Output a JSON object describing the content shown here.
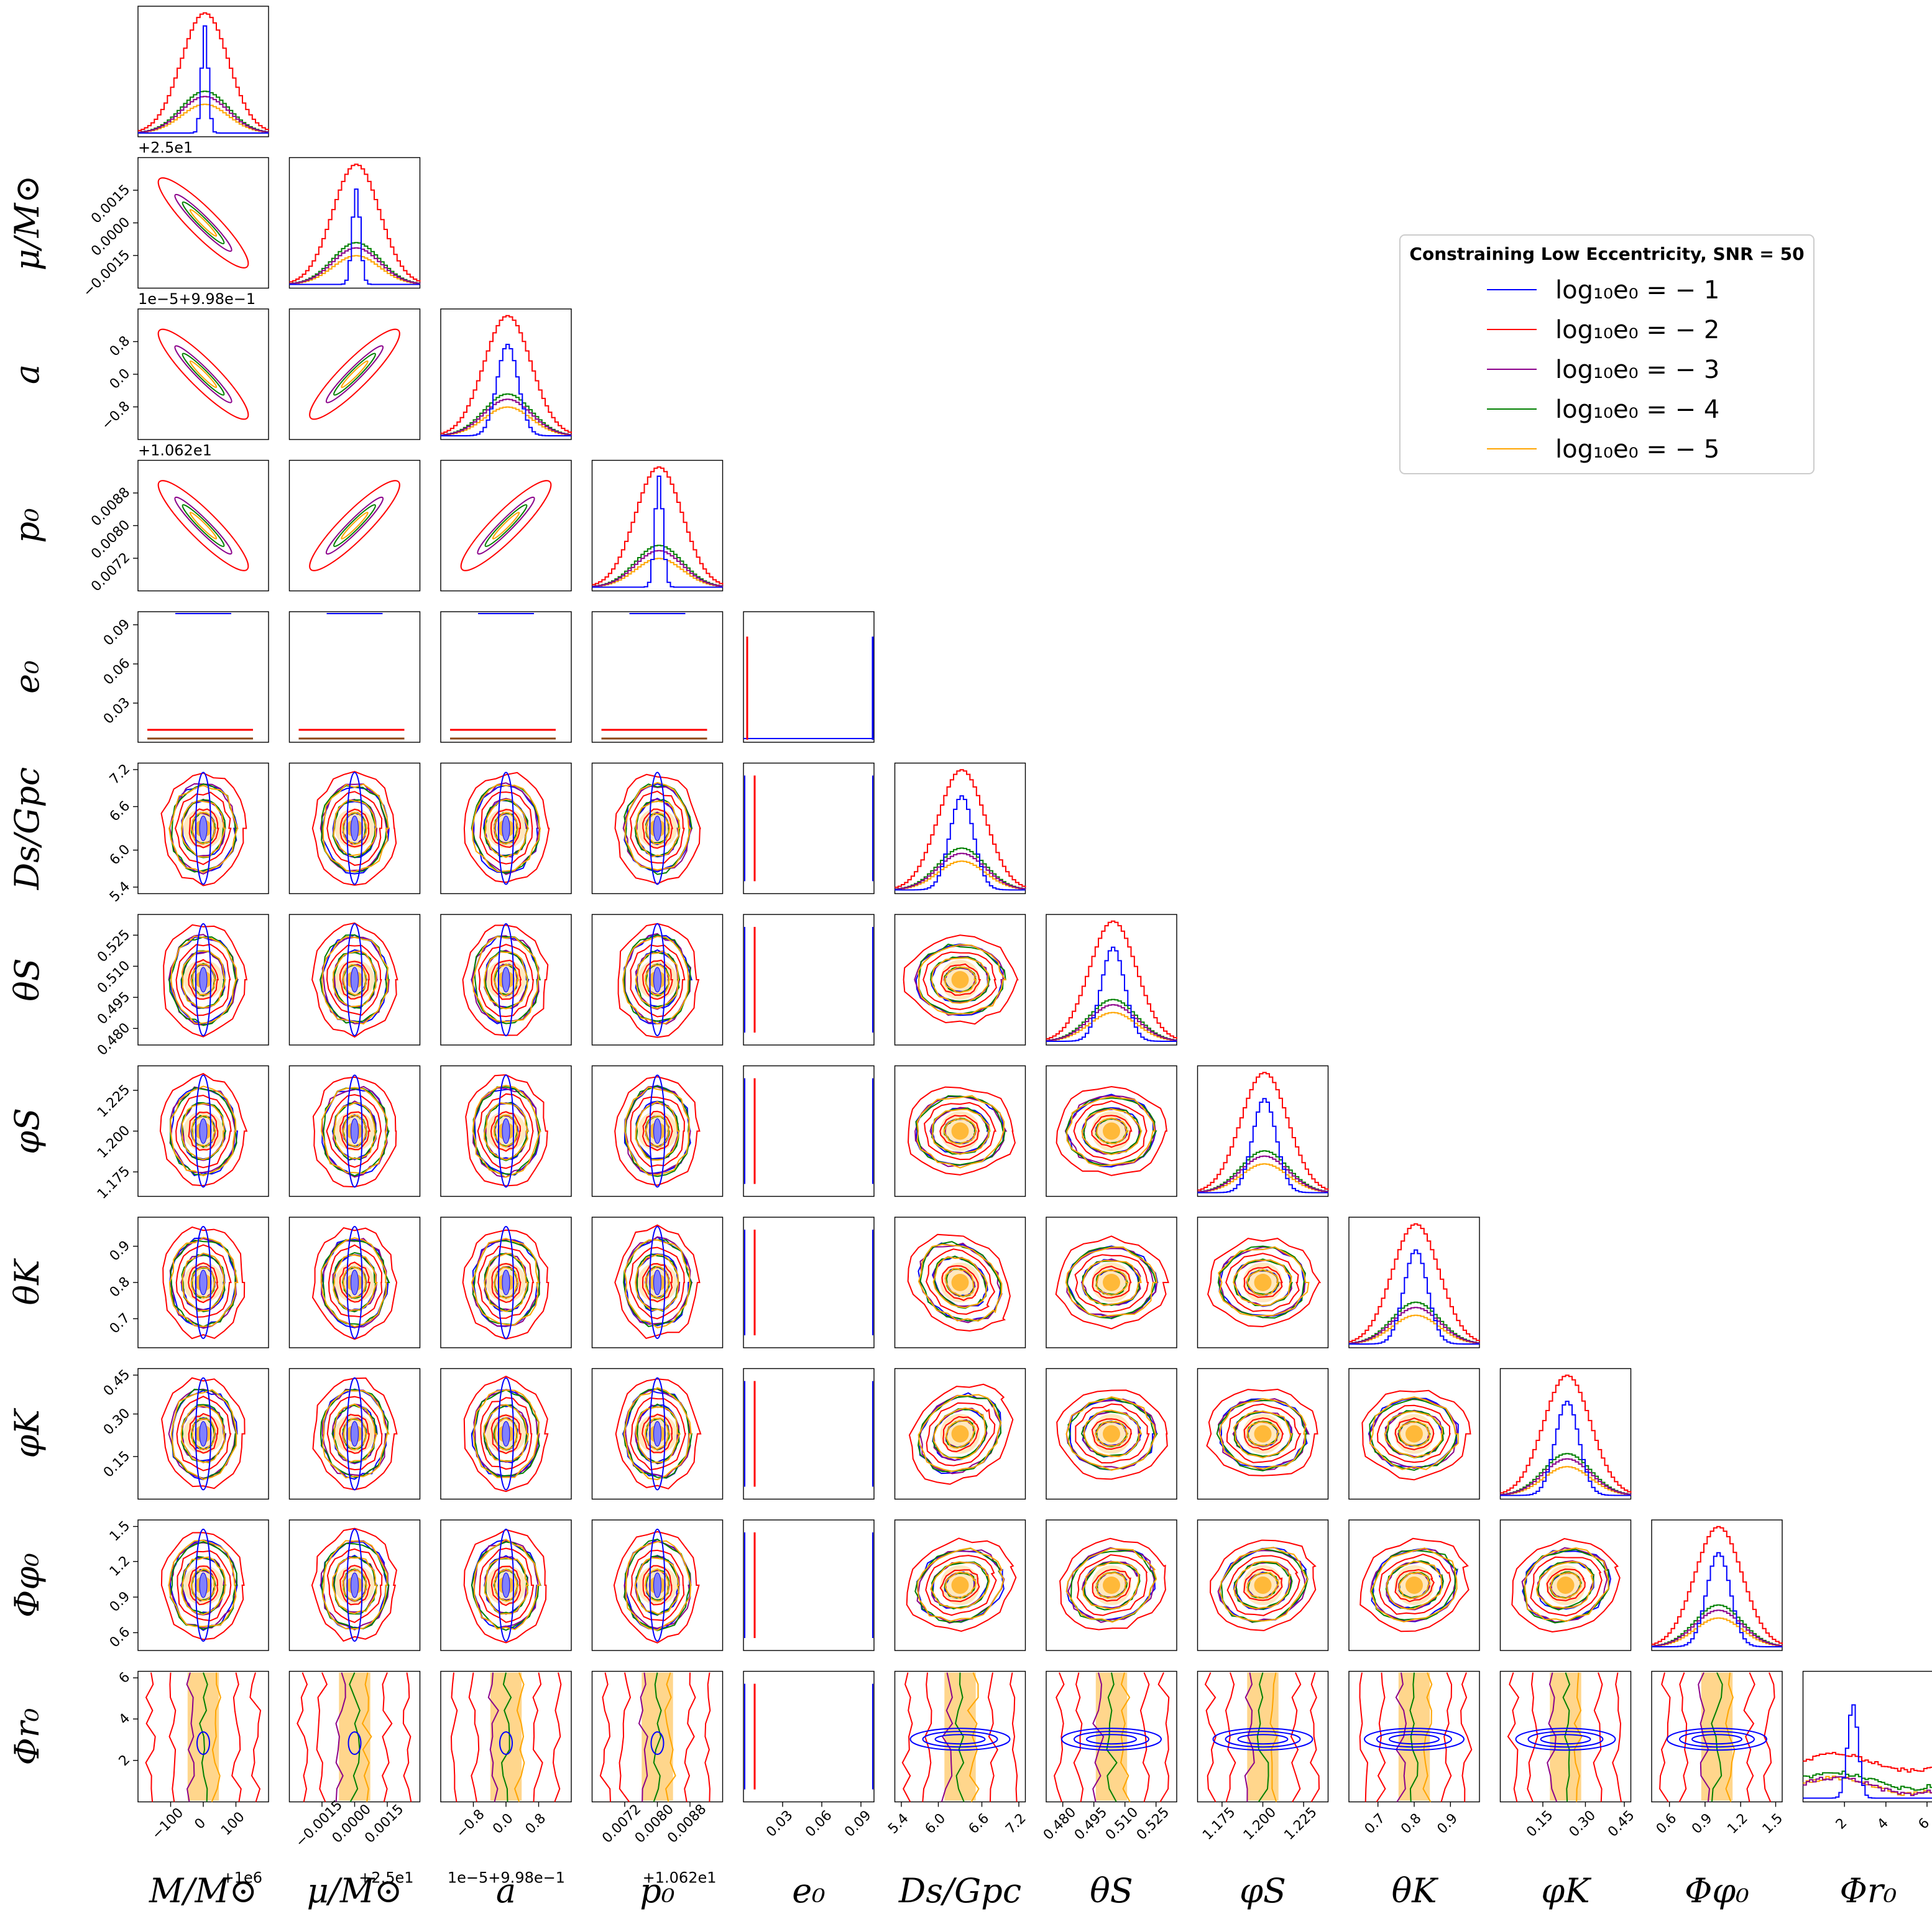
{
  "chart_data": {
    "type": "corner",
    "grid": false,
    "legend": {
      "title": "Constraining Low Eccentricity, SNR = 50",
      "placement": "upper-right",
      "entries": [
        {
          "label": "log₁₀e₀ = − 1",
          "color": "#0000ff"
        },
        {
          "label": "log₁₀e₀ = − 2",
          "color": "#ff0000"
        },
        {
          "label": "log₁₀e₀ = − 3",
          "color": "#8b008b"
        },
        {
          "label": "log₁₀e₀ = − 4",
          "color": "#008000"
        },
        {
          "label": "log₁₀e₀ = − 5",
          "color": "#ffa500"
        }
      ]
    },
    "parameters": [
      {
        "label": "M/M⊙",
        "ylabel": "",
        "ticks": [
          "−100",
          "0",
          "100"
        ],
        "offset": "+1e6",
        "range": [
          -200,
          200
        ],
        "center": 0
      },
      {
        "label": "μ/M⊙",
        "ylabel": "μ/M⊙",
        "ticks": [
          "−0.0015",
          "0.0000",
          "0.0015"
        ],
        "offset": "+2.5e1",
        "range": [
          -0.003,
          0.003
        ],
        "center": 0
      },
      {
        "label": "a",
        "ylabel": "a",
        "ticks": [
          "−0.8",
          "0.0",
          "0.8"
        ],
        "offset": "1e−5+9.98e−1",
        "range": [
          -1.6,
          1.6
        ],
        "center": 0
      },
      {
        "label": "p₀",
        "ylabel": "p₀",
        "ticks": [
          "0.0072",
          "0.0080",
          "0.0088"
        ],
        "offset": "+1.062e1",
        "range": [
          0.0064,
          0.0096
        ],
        "center": 0.008
      },
      {
        "label": "e₀",
        "ylabel": "e₀",
        "ticks": [
          "0.03",
          "0.06",
          "0.09"
        ],
        "offset": "",
        "range": [
          0,
          0.1
        ],
        "center": 0.0
      },
      {
        "label": "Ds/Gpc",
        "ylabel": "Ds/Gpc",
        "ticks": [
          "5.4",
          "6.0",
          "6.6",
          "7.2"
        ],
        "offset": "",
        "range": [
          5.4,
          7.2
        ],
        "center": 6.3
      },
      {
        "label": "θS",
        "ylabel": "θS",
        "ticks": [
          "0.480",
          "0.495",
          "0.510",
          "0.525"
        ],
        "offset": "",
        "range": [
          0.472,
          0.535
        ],
        "center": 0.503
      },
      {
        "label": "φS",
        "ylabel": "φS",
        "ticks": [
          "1.175",
          "1.200",
          "1.225"
        ],
        "offset": "",
        "range": [
          1.16,
          1.24
        ],
        "center": 1.2
      },
      {
        "label": "θK",
        "ylabel": "θK",
        "ticks": [
          "0.7",
          "0.8",
          "0.9"
        ],
        "offset": "",
        "range": [
          0.62,
          0.98
        ],
        "center": 0.8
      },
      {
        "label": "φK",
        "ylabel": "φK",
        "ticks": [
          "0.15",
          "0.30",
          "0.45"
        ],
        "offset": "",
        "range": [
          0.0,
          0.46
        ],
        "center": 0.22
      },
      {
        "label": "Φφ₀",
        "ylabel": "Φφ₀",
        "ticks": [
          "0.6",
          "0.9",
          "1.2",
          "1.5"
        ],
        "offset": "",
        "range": [
          0.45,
          1.55
        ],
        "center": 1.0
      },
      {
        "label": "Φr₀",
        "ylabel": "Φr₀",
        "ticks": [
          "2",
          "4",
          "6"
        ],
        "offset": "",
        "range": [
          0,
          6.3
        ],
        "center": 3.0
      }
    ],
    "histogram_peaks": {
      "note": "relative peak heights of the 1-D marginals per series",
      "series": [
        "log₁₀e₀ = − 1",
        "log₁₀e₀ = − 2",
        "log₁₀e₀ = − 3",
        "log₁₀e₀ = − 4",
        "log₁₀e₀ = − 5"
      ]
    }
  }
}
